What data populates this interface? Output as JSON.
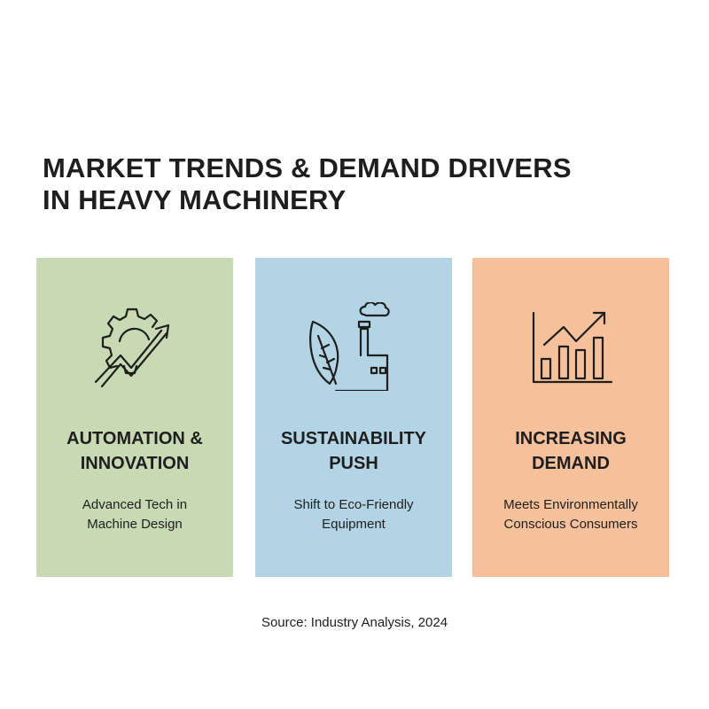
{
  "title": {
    "line1": "MARKET TRENDS & DEMAND DRIVERS",
    "line2": "IN HEAVY MACHINERY"
  },
  "cards": [
    {
      "heading1": "AUTOMATION &",
      "heading2": "INNOVATION",
      "text1": "Advanced Tech in",
      "text2": "Machine Design",
      "icon": "gear-arrow-icon",
      "color": "#c7dab4"
    },
    {
      "heading1": "SUSTAINABILITY",
      "heading2": "PUSH",
      "text1": "Shift to Eco-Friendly",
      "text2": "Equipment",
      "icon": "leaf-factory-icon",
      "color": "#b3d4e4"
    },
    {
      "heading1": "INCREASING",
      "heading2": "DEMAND",
      "text1": "Meets Environmentally",
      "text2": "Conscious Consumers",
      "icon": "bar-chart-growth-icon",
      "color": "#f5c09a"
    }
  ],
  "source": "Source: Industry Analysis, 2024"
}
